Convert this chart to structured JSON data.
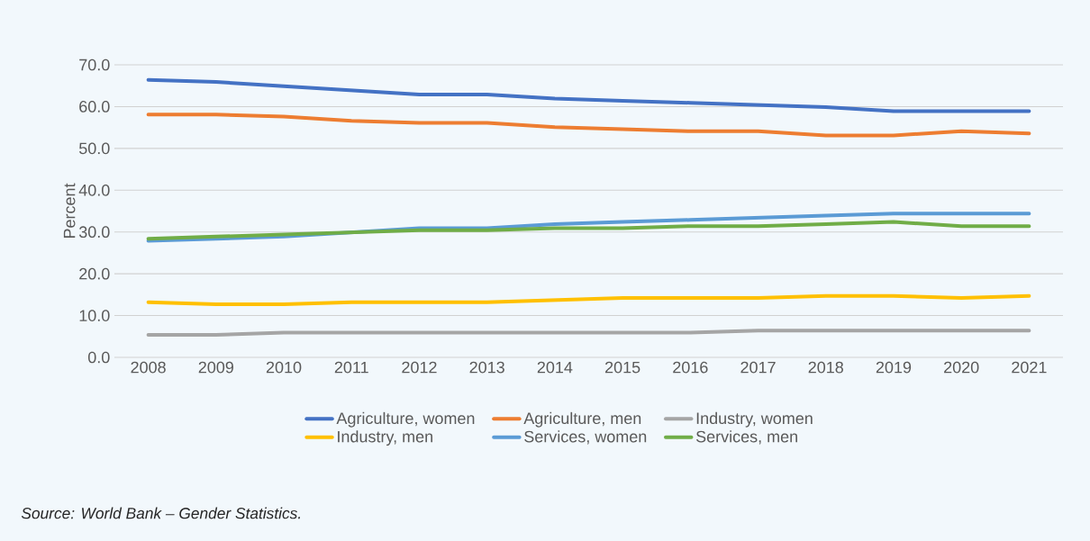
{
  "chart_data": {
    "type": "line",
    "ylabel": "Percent",
    "categories": [
      "2008",
      "2009",
      "2010",
      "2011",
      "2012",
      "2013",
      "2014",
      "2015",
      "2016",
      "2017",
      "2018",
      "2019",
      "2020",
      "2021"
    ],
    "series": [
      {
        "name": "Agriculture, women",
        "color": "#4472c4",
        "values": [
          66.4,
          65.9,
          64.9,
          63.9,
          62.9,
          62.9,
          61.9,
          61.4,
          60.9,
          60.4,
          59.9,
          58.9,
          58.9,
          58.9
        ]
      },
      {
        "name": "Agriculture, men",
        "color": "#ed7d31",
        "values": [
          58.1,
          58.1,
          57.6,
          56.6,
          56.1,
          56.1,
          55.1,
          54.6,
          54.1,
          54.1,
          53.1,
          53.1,
          54.1,
          53.6
        ]
      },
      {
        "name": "Industry, women",
        "color": "#a5a5a5",
        "values": [
          5.4,
          5.4,
          5.9,
          5.9,
          5.9,
          5.9,
          5.9,
          5.9,
          5.9,
          6.4,
          6.4,
          6.4,
          6.4,
          6.4
        ]
      },
      {
        "name": "Industry, men",
        "color": "#ffc000",
        "values": [
          13.2,
          12.7,
          12.7,
          13.2,
          13.2,
          13.2,
          13.7,
          14.2,
          14.2,
          14.2,
          14.7,
          14.7,
          14.2,
          14.7
        ]
      },
      {
        "name": "Services, women",
        "color": "#5b9bd5",
        "values": [
          27.9,
          28.4,
          28.9,
          29.9,
          30.9,
          30.9,
          31.9,
          32.4,
          32.9,
          33.4,
          33.9,
          34.4,
          34.4,
          34.4
        ]
      },
      {
        "name": "Services, men",
        "color": "#70ad47",
        "values": [
          28.4,
          28.9,
          29.4,
          29.9,
          30.4,
          30.4,
          30.9,
          30.9,
          31.4,
          31.4,
          31.9,
          32.4,
          31.4,
          31.4
        ]
      }
    ],
    "ylim": [
      0,
      70
    ],
    "yticks": [
      {
        "value": 0,
        "label": "0.0"
      },
      {
        "value": 10,
        "label": "10.0"
      },
      {
        "value": 20,
        "label": "20.0"
      },
      {
        "value": 30,
        "label": "30.0"
      },
      {
        "value": 40,
        "label": "40.0"
      },
      {
        "value": 50,
        "label": "50.0"
      },
      {
        "value": 60,
        "label": "60.0"
      },
      {
        "value": 70,
        "label": "70.0"
      }
    ],
    "grid": "y",
    "legend": "bottom",
    "annotations": [
      "*Source: World Bank – Gender Statistics.*"
    ]
  }
}
